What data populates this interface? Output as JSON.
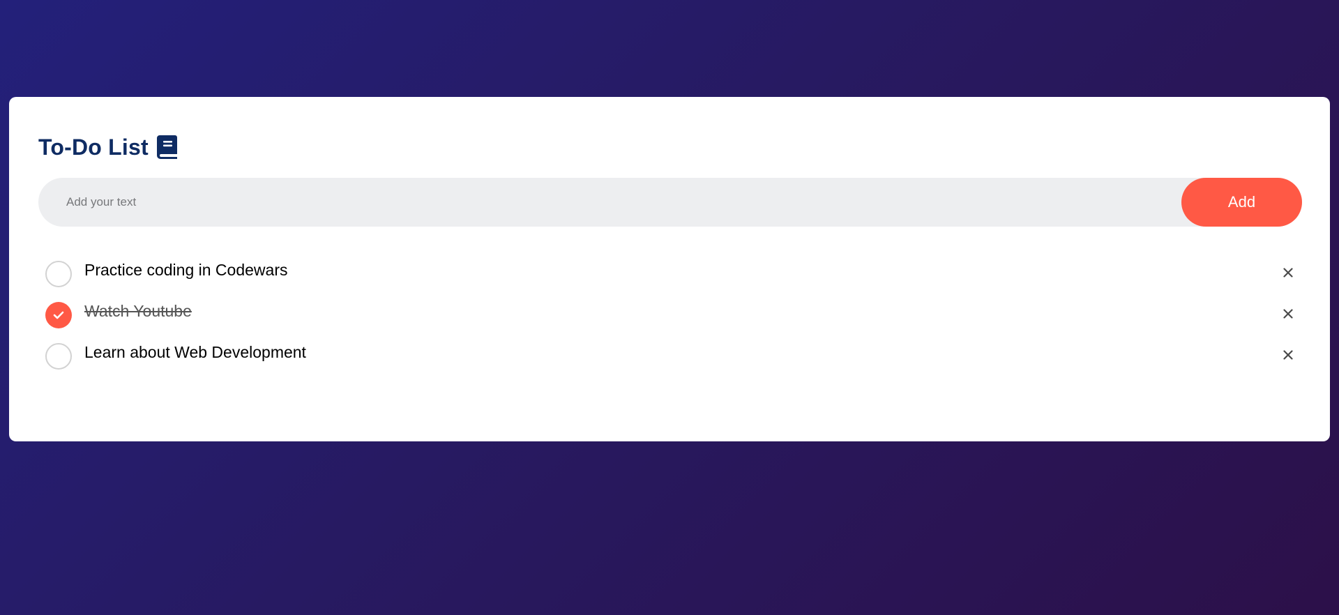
{
  "app": {
    "title": "To-Do List",
    "title_icon": "book-icon"
  },
  "input": {
    "placeholder": "Add your text",
    "value": ""
  },
  "add_button": {
    "label": "Add"
  },
  "tasks": [
    {
      "text": "Practice coding in Codewars",
      "checked": false
    },
    {
      "text": "Watch Youtube",
      "checked": true
    },
    {
      "text": "Learn about Web Development",
      "checked": false
    }
  ],
  "icons": {
    "delete": "close-icon",
    "check": "checkmark-icon"
  },
  "colors": {
    "accent": "#ff5945",
    "title": "#0f2c63",
    "input_bg": "#edeef0",
    "background_start": "#23207a",
    "background_end": "#2c1049"
  }
}
